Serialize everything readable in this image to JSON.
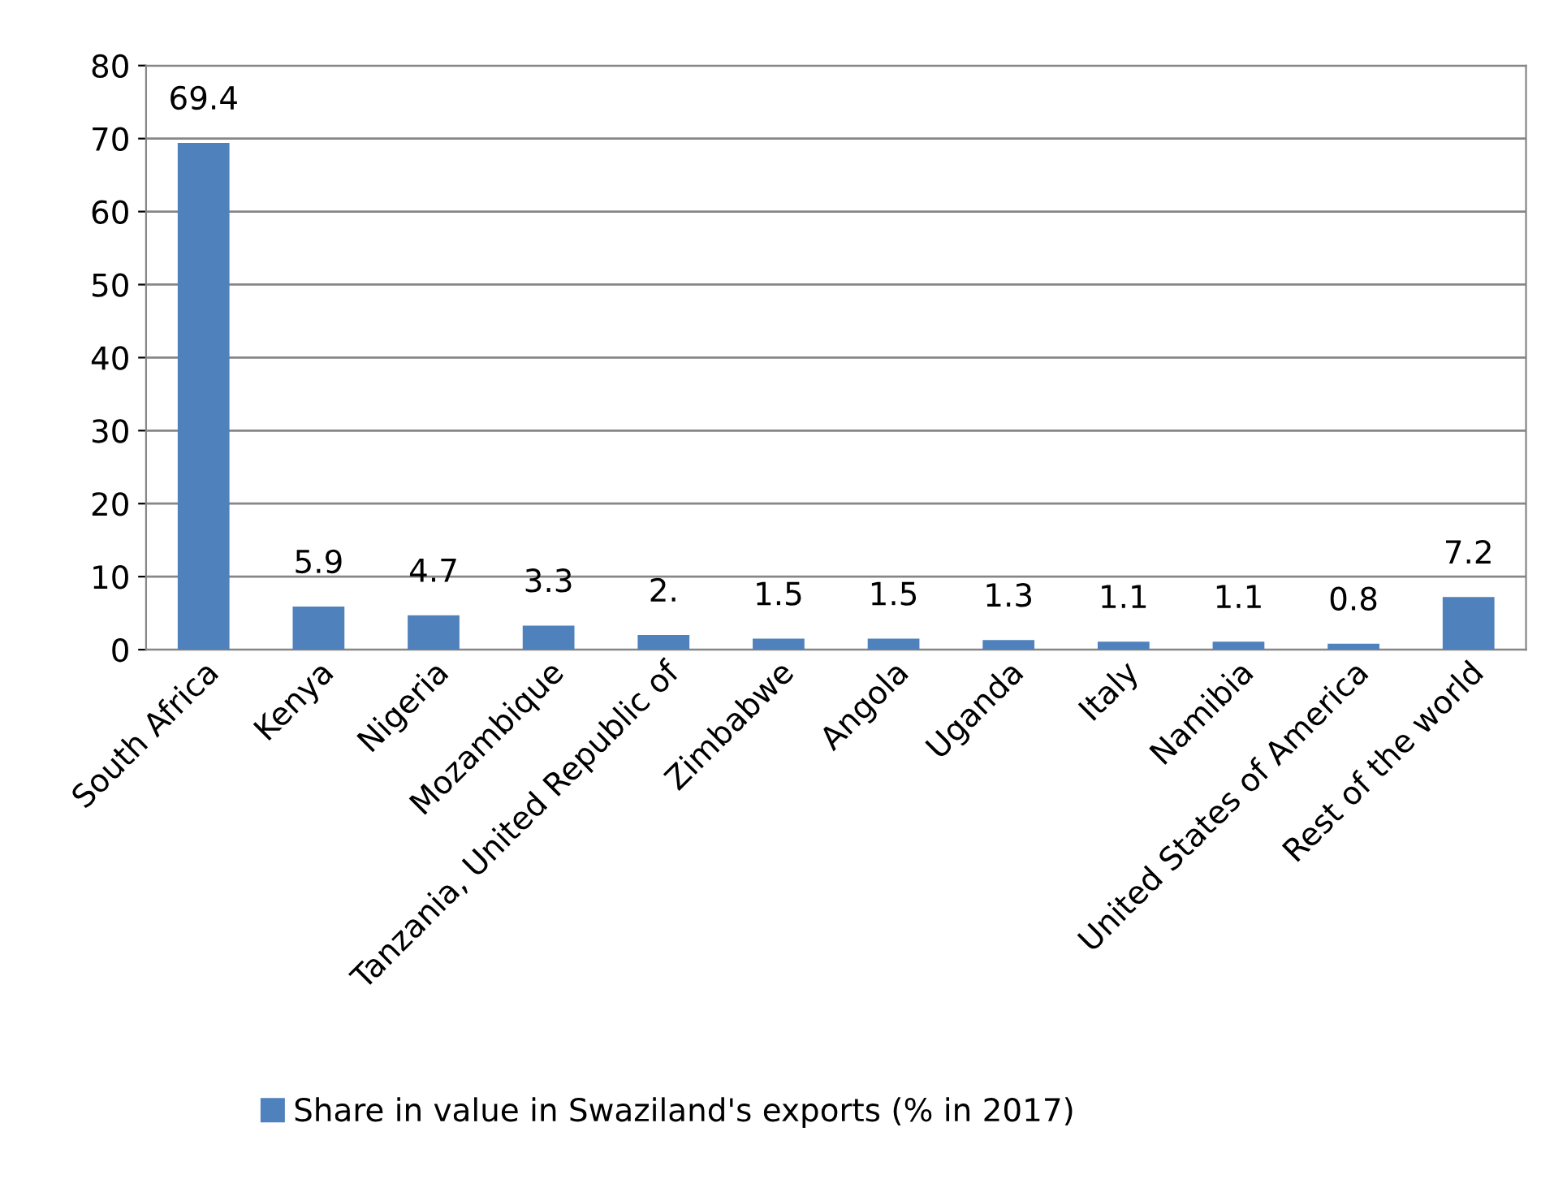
{
  "chart_data": {
    "type": "bar",
    "categories": [
      "South Africa",
      "Kenya",
      "Nigeria",
      "Mozambique",
      "Tanzania, United Republic of",
      "Zimbabwe",
      "Angola",
      "Uganda",
      "Italy",
      "Namibia",
      "United States of America",
      "Rest of the world"
    ],
    "series": [
      {
        "name": "Share in value in Swaziland's exports (% in 2017)",
        "color": "#4f81bd",
        "values": [
          69.4,
          5.9,
          4.7,
          3.3,
          2.0,
          1.5,
          1.5,
          1.3,
          1.1,
          1.1,
          0.8,
          7.2
        ],
        "value_labels": [
          "69.4",
          "5.9",
          "4.7",
          "3.3",
          "2.",
          "1.5",
          "1.5",
          "1.3",
          "1.1",
          "1.1",
          "0.8",
          "7.2"
        ]
      }
    ],
    "ylim": [
      0,
      80
    ],
    "yticks": [
      0,
      10,
      20,
      30,
      40,
      50,
      60,
      70,
      80
    ],
    "grid": "y",
    "legend": "bottom"
  }
}
